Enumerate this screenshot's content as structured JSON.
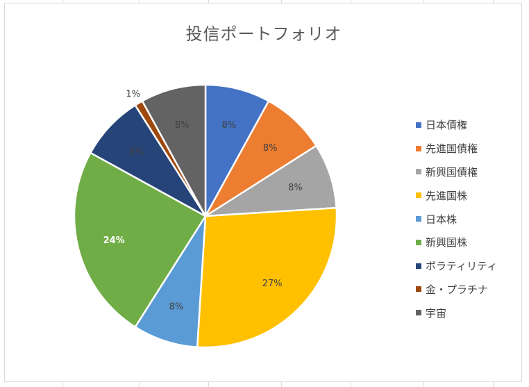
{
  "chart_data": {
    "type": "pie",
    "title": "投信ポートフォリオ",
    "categories": [
      "日本債権",
      "先進国債権",
      "新興国債権",
      "先進国株",
      "日本株",
      "新興国株",
      "ボラティリティ",
      "金・プラチナ",
      "宇宙"
    ],
    "values": [
      8,
      8,
      8,
      27,
      8,
      24,
      8,
      1,
      8
    ],
    "data_labels": [
      "8%",
      "8%",
      "8%",
      "27%",
      "8%",
      "24%",
      "8%",
      "1%",
      "8%"
    ],
    "colors": [
      "#4472c4",
      "#ed7d31",
      "#a5a5a5",
      "#ffc000",
      "#5b9bd5",
      "#70ad47",
      "#264478",
      "#9e480e",
      "#636363"
    ],
    "label_colors": [
      "#404040",
      "#404040",
      "#404040",
      "#404040",
      "#404040",
      "#ffffff",
      "#404040",
      "#404040",
      "#404040"
    ],
    "legend_position": "right",
    "start_angle_deg": 0,
    "direction": "clockwise"
  }
}
